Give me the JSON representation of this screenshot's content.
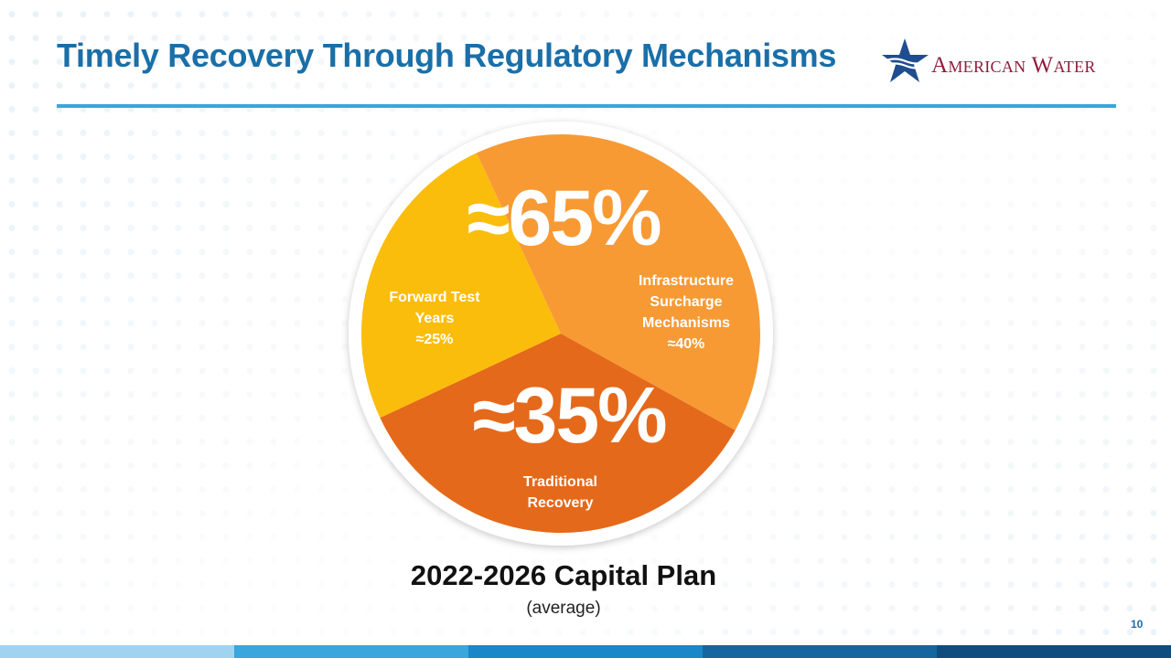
{
  "header": {
    "title": "Timely Recovery Through Regulatory Mechanisms",
    "logo_text": "American Water",
    "rule_color": "#3aa6dd",
    "title_color": "#1a6fa8"
  },
  "logo": {
    "icon": "star-wave-icon",
    "color": "#1f4d8f",
    "text_color": "#8f1d3a"
  },
  "chart_data": {
    "type": "pie",
    "title": "",
    "slices": [
      {
        "label_lines": [
          "Infrastructure",
          "Surcharge",
          "Mechanisms",
          "≈40%"
        ],
        "value": 40,
        "color": "#f79a34"
      },
      {
        "label_lines": [
          "Traditional",
          "Recovery"
        ],
        "value": 35,
        "color": "#e5691a"
      },
      {
        "label_lines": [
          "Forward Test",
          "Years",
          "≈25%"
        ],
        "value": 25,
        "color": "#fbbd0b"
      }
    ],
    "group_labels": [
      "≈65%",
      "≈35%"
    ],
    "caption": "2022-2026 Capital Plan",
    "subcaption": "(average)"
  },
  "footer": {
    "page_number": "10",
    "bar_colors": [
      "#9fd3f0",
      "#3aa6dd",
      "#1b86c8",
      "#15669f",
      "#0f4d7e"
    ]
  }
}
